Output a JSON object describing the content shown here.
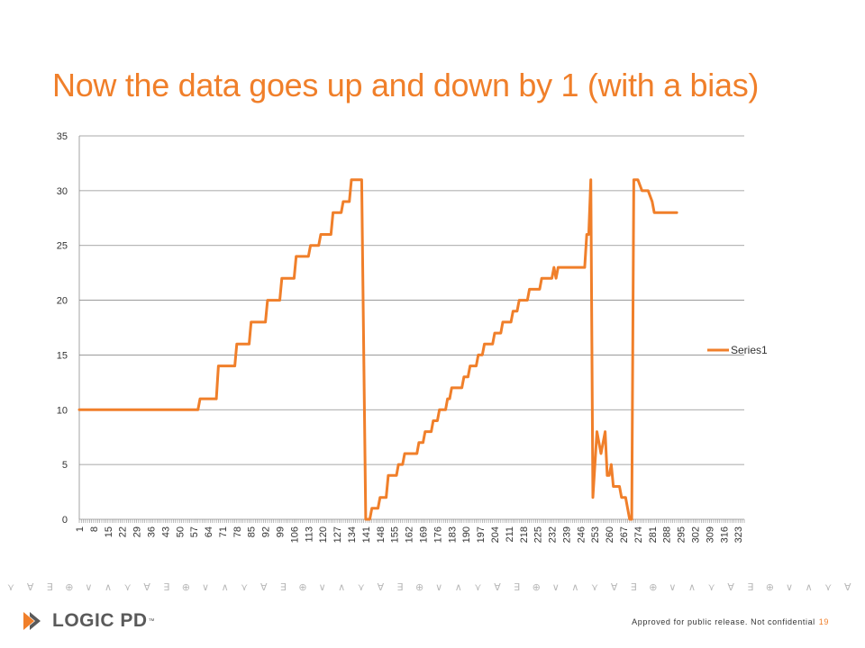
{
  "slide": {
    "title": "Now the data goes up and down by 1 (with a bias)",
    "footer_text": "Approved for public release. Not confidential",
    "page_number": "19",
    "logo_text": "LOGIC PD",
    "logo_tm": "™",
    "accent_color": "#f07f2a"
  },
  "decor": {
    "symbol_glyphs": [
      "⋎",
      "∀",
      "∃",
      "⊕",
      "∨",
      "∧",
      "⋎",
      "∀",
      "∃",
      "⊕",
      "∨",
      "∧"
    ],
    "symbol_color": "#b8b8b8"
  },
  "chart_data": {
    "type": "line",
    "ylim": [
      0,
      35
    ],
    "yticks": [
      0,
      5,
      10,
      15,
      20,
      25,
      30,
      35
    ],
    "xlim": [
      1,
      326
    ],
    "xtick_labels": [
      "1",
      "8",
      "15",
      "22",
      "29",
      "36",
      "43",
      "50",
      "57",
      "64",
      "71",
      "78",
      "85",
      "92",
      "99",
      "106",
      "113",
      "120",
      "127",
      "134",
      "141",
      "148",
      "155",
      "162",
      "169",
      "176",
      "183",
      "190",
      "197",
      "204",
      "211",
      "218",
      "225",
      "232",
      "239",
      "246",
      "253",
      "260",
      "267",
      "274",
      "281",
      "288",
      "295",
      "302",
      "309",
      "316",
      "323"
    ],
    "grid": true,
    "legend_position": "right",
    "series": [
      {
        "name": "Series1",
        "color": "#f07f2a",
        "points": [
          [
            1,
            10
          ],
          [
            59,
            10
          ],
          [
            60,
            11
          ],
          [
            68,
            11
          ],
          [
            69,
            14
          ],
          [
            77,
            14
          ],
          [
            78,
            16
          ],
          [
            84,
            16
          ],
          [
            85,
            18
          ],
          [
            92,
            18
          ],
          [
            93,
            20
          ],
          [
            99,
            20
          ],
          [
            100,
            22
          ],
          [
            106,
            22
          ],
          [
            107,
            24
          ],
          [
            113,
            24
          ],
          [
            114,
            25
          ],
          [
            118,
            25
          ],
          [
            119,
            26
          ],
          [
            124,
            26
          ],
          [
            125,
            28
          ],
          [
            129,
            28
          ],
          [
            130,
            29
          ],
          [
            133,
            29
          ],
          [
            134,
            31
          ],
          [
            139,
            31
          ],
          [
            141,
            0
          ],
          [
            143,
            0
          ],
          [
            144,
            1
          ],
          [
            147,
            1
          ],
          [
            148,
            2
          ],
          [
            151,
            2
          ],
          [
            152,
            4
          ],
          [
            156,
            4
          ],
          [
            157,
            5
          ],
          [
            159,
            5
          ],
          [
            160,
            6
          ],
          [
            166,
            6
          ],
          [
            167,
            7
          ],
          [
            169,
            7
          ],
          [
            170,
            8
          ],
          [
            173,
            8
          ],
          [
            174,
            9
          ],
          [
            176,
            9
          ],
          [
            177,
            10
          ],
          [
            180,
            10
          ],
          [
            181,
            11
          ],
          [
            182,
            11
          ],
          [
            183,
            12
          ],
          [
            188,
            12
          ],
          [
            189,
            13
          ],
          [
            191,
            13
          ],
          [
            192,
            14
          ],
          [
            195,
            14
          ],
          [
            196,
            15
          ],
          [
            198,
            15
          ],
          [
            199,
            16
          ],
          [
            203,
            16
          ],
          [
            204,
            17
          ],
          [
            207,
            17
          ],
          [
            208,
            18
          ],
          [
            212,
            18
          ],
          [
            213,
            19
          ],
          [
            215,
            19
          ],
          [
            216,
            20
          ],
          [
            220,
            20
          ],
          [
            221,
            21
          ],
          [
            226,
            21
          ],
          [
            227,
            22
          ],
          [
            232,
            22
          ],
          [
            233,
            23
          ],
          [
            234,
            22
          ],
          [
            235,
            23
          ],
          [
            248,
            23
          ],
          [
            249,
            26
          ],
          [
            250,
            26
          ],
          [
            251,
            31
          ],
          [
            252,
            2
          ],
          [
            254,
            8
          ],
          [
            256,
            6
          ],
          [
            258,
            8
          ],
          [
            259,
            4
          ],
          [
            260,
            4
          ],
          [
            261,
            5
          ],
          [
            262,
            3
          ],
          [
            265,
            3
          ],
          [
            266,
            2
          ],
          [
            268,
            2
          ],
          [
            270,
            0
          ],
          [
            271,
            0
          ],
          [
            272,
            31
          ],
          [
            274,
            31
          ],
          [
            276,
            30
          ],
          [
            279,
            30
          ],
          [
            281,
            29
          ],
          [
            282,
            28
          ],
          [
            293,
            28
          ]
        ]
      }
    ]
  }
}
